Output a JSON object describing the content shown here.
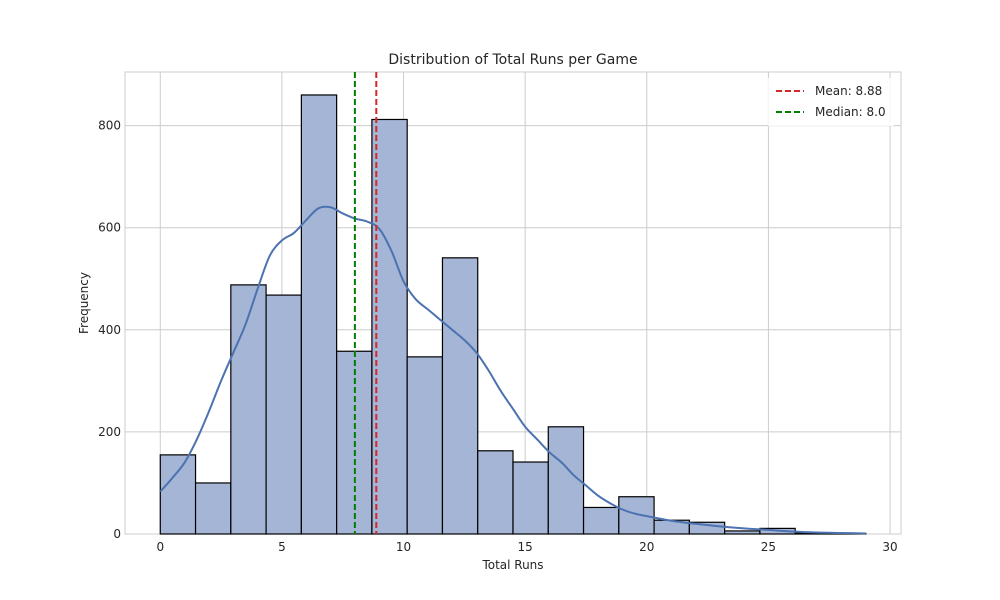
{
  "chart_data": {
    "type": "bar",
    "title": "Distribution of Total Runs per Game",
    "xlabel": "Total Runs",
    "ylabel": "Frequency",
    "xlim": [
      -1.45,
      30.45
    ],
    "ylim": [
      0,
      905
    ],
    "xticks": [
      0,
      5,
      10,
      15,
      20,
      25,
      30
    ],
    "yticks": [
      0,
      200,
      400,
      600,
      800
    ],
    "grid": true,
    "bins": {
      "edges": [
        0,
        1.45,
        2.9,
        4.35,
        5.8,
        7.25,
        8.7,
        10.15,
        11.6,
        13.05,
        14.5,
        15.95,
        17.4,
        18.85,
        20.3,
        21.75,
        23.2,
        24.65,
        26.1,
        27.55,
        29
      ],
      "counts": [
        155,
        100,
        488,
        468,
        860,
        358,
        812,
        347,
        541,
        163,
        141,
        210,
        52,
        73,
        27,
        23,
        6,
        11,
        2,
        1
      ],
      "fill": "#a4b5d5",
      "edgecolor": "#000000"
    },
    "kde": {
      "color": "#4c72b0",
      "x": [
        0,
        0.5,
        1,
        1.5,
        2,
        2.5,
        3,
        3.5,
        4,
        4.5,
        5,
        5.5,
        6,
        6.5,
        7,
        7.5,
        8,
        8.5,
        9,
        9.5,
        10,
        10.5,
        11,
        11.5,
        12,
        12.5,
        13,
        13.5,
        14,
        14.5,
        15,
        15.5,
        16,
        16.5,
        17,
        17.5,
        18,
        18.5,
        19,
        19.5,
        20,
        21,
        22,
        23,
        24,
        25,
        26,
        27,
        28,
        29
      ],
      "y": [
        83,
        110,
        140,
        185,
        240,
        300,
        355,
        410,
        480,
        545,
        575,
        590,
        615,
        638,
        640,
        628,
        618,
        612,
        598,
        555,
        495,
        460,
        440,
        420,
        400,
        380,
        355,
        320,
        280,
        245,
        210,
        185,
        160,
        140,
        115,
        95,
        75,
        60,
        48,
        40,
        35,
        26,
        20,
        15,
        11,
        8,
        5,
        3,
        2,
        1
      ]
    },
    "reference_lines": [
      {
        "label": "Mean: 8.88",
        "x": 8.88,
        "color": "#d62728"
      },
      {
        "label": "Median: 8.0",
        "x": 8.0,
        "color": "#008000"
      }
    ],
    "legend": {
      "placement": "top-right",
      "entries": [
        "Mean: 8.88",
        "Median: 8.0"
      ]
    }
  }
}
